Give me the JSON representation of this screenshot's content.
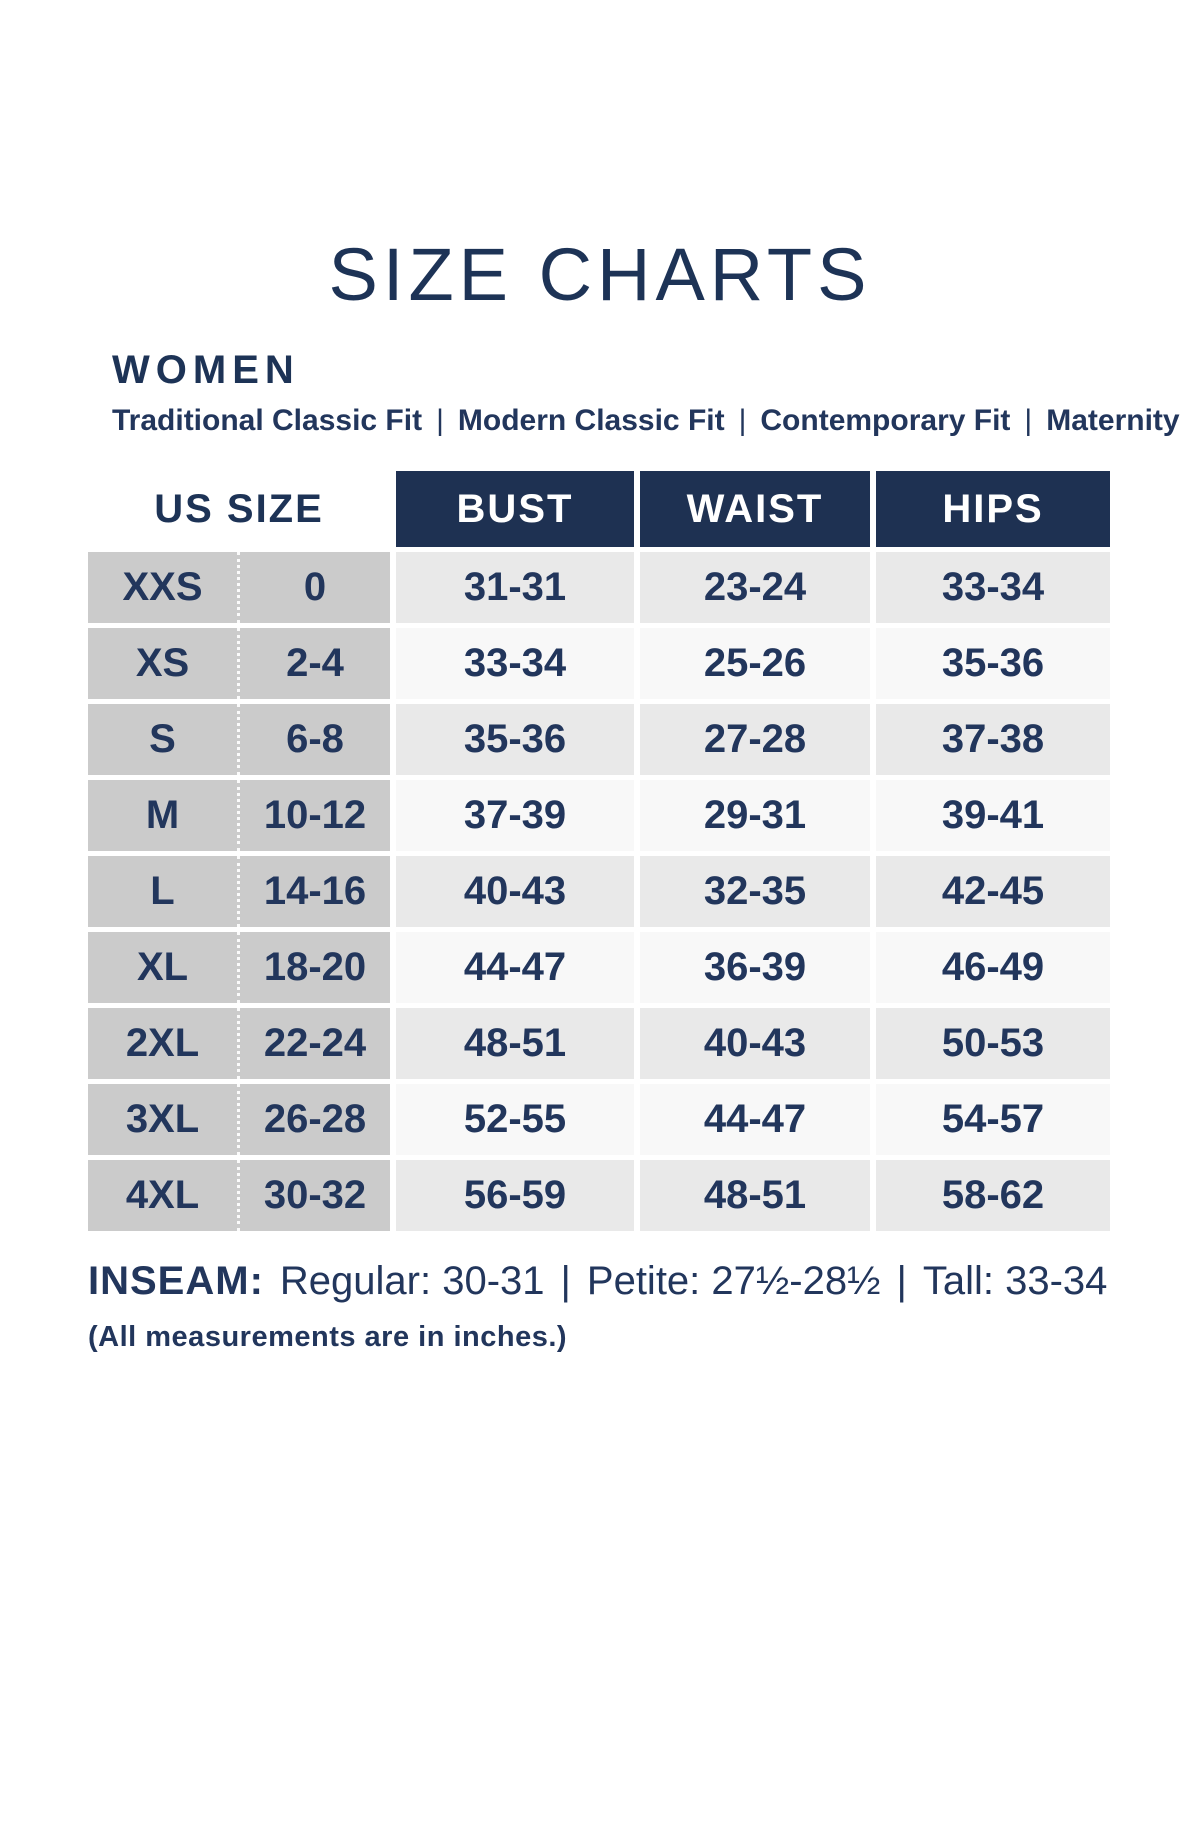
{
  "header": {
    "title": "SIZE CHARTS",
    "section": "WOMEN",
    "separator": "|",
    "fit_options": [
      "Traditional Classic Fit",
      "Modern Classic Fit",
      "Contemporary Fit",
      "Maternity"
    ]
  },
  "size_table": {
    "us_size_header": "US SIZE",
    "measure_headers": [
      "BUST",
      "WAIST",
      "HIPS"
    ],
    "rows": [
      {
        "size": "XXS",
        "us": "0",
        "bust": "31-31",
        "waist": "23-24",
        "hips": "33-34"
      },
      {
        "size": "XS",
        "us": "2-4",
        "bust": "33-34",
        "waist": "25-26",
        "hips": "35-36"
      },
      {
        "size": "S",
        "us": "6-8",
        "bust": "35-36",
        "waist": "27-28",
        "hips": "37-38"
      },
      {
        "size": "M",
        "us": "10-12",
        "bust": "37-39",
        "waist": "29-31",
        "hips": "39-41"
      },
      {
        "size": "L",
        "us": "14-16",
        "bust": "40-43",
        "waist": "32-35",
        "hips": "42-45"
      },
      {
        "size": "XL",
        "us": "18-20",
        "bust": "44-47",
        "waist": "36-39",
        "hips": "46-49"
      },
      {
        "size": "2XL",
        "us": "22-24",
        "bust": "48-51",
        "waist": "40-43",
        "hips": "50-53"
      },
      {
        "size": "3XL",
        "us": "26-28",
        "bust": "52-55",
        "waist": "44-47",
        "hips": "54-57"
      },
      {
        "size": "4XL",
        "us": "30-32",
        "bust": "56-59",
        "waist": "48-51",
        "hips": "58-62"
      }
    ]
  },
  "inseam": {
    "label": "INSEAM:",
    "separator": "|",
    "options": [
      "Regular: 30-31",
      "Petite: 27½-28½",
      "Tall: 33-34"
    ]
  },
  "note": "(All measurements are in inches.)",
  "colors": {
    "navy_header_bg": "#1e3152",
    "navy_text": "#22365c",
    "size_column_bg": "#cbcbcb",
    "row_shaded_bg": "#e9e9e9",
    "row_light_bg": "#f8f8f8"
  }
}
